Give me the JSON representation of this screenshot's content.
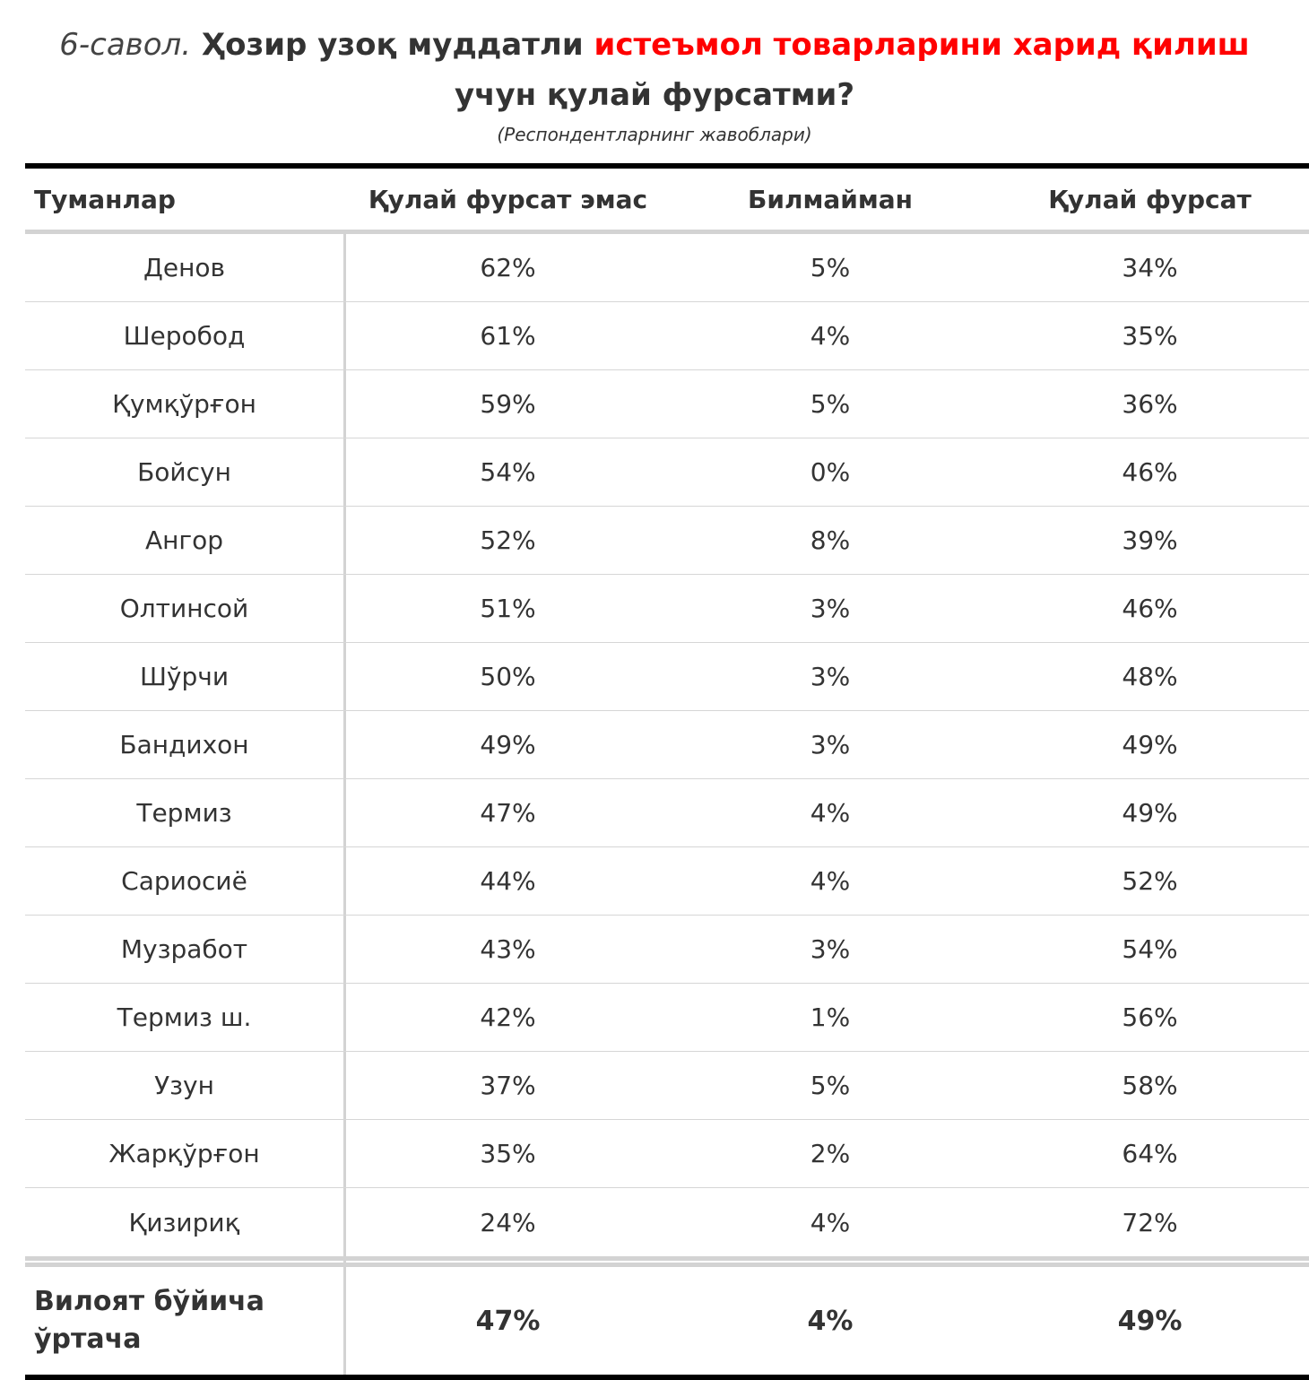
{
  "title": {
    "question_number": "6-савол.",
    "part1": "Ҳозир узоқ муддатли",
    "part2_highlight": "истеъмол товарларини харид қилиш",
    "part3": "учун қулай фурсатми?",
    "highlight_color": "#ff0000"
  },
  "subtitle": "(Респондентларнинг жавоблари)",
  "chart_data": {
    "type": "table",
    "columns": [
      "Туманлар",
      "Қулай фурсат эмас",
      "Билмайман",
      "Қулай фурсат"
    ],
    "rows": [
      [
        "Денов",
        "62%",
        "5%",
        "34%"
      ],
      [
        "Шеробод",
        "61%",
        "4%",
        "35%"
      ],
      [
        "Қумқўрғон",
        "59%",
        "5%",
        "36%"
      ],
      [
        "Бойсун",
        "54%",
        "0%",
        "46%"
      ],
      [
        "Ангор",
        "52%",
        "8%",
        "39%"
      ],
      [
        "Олтинсой",
        "51%",
        "3%",
        "46%"
      ],
      [
        "Шўрчи",
        "50%",
        "3%",
        "48%"
      ],
      [
        "Бандихон",
        "49%",
        "3%",
        "49%"
      ],
      [
        "Термиз",
        "47%",
        "4%",
        "49%"
      ],
      [
        "Сариосиё",
        "44%",
        "4%",
        "52%"
      ],
      [
        "Музработ",
        "43%",
        "3%",
        "54%"
      ],
      [
        "Термиз ш.",
        "42%",
        "1%",
        "56%"
      ],
      [
        "Узун",
        "37%",
        "5%",
        "58%"
      ],
      [
        "Жарқўрғон",
        "35%",
        "2%",
        "64%"
      ],
      [
        "Қизириқ",
        "24%",
        "4%",
        "72%"
      ]
    ],
    "footer": [
      "Вилоят бўйича ўртача",
      "47%",
      "4%",
      "49%"
    ]
  }
}
